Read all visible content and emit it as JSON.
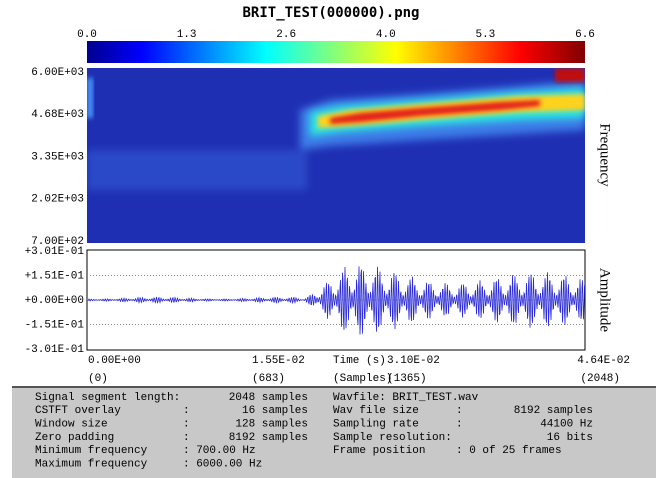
{
  "title": "BRIT_TEST(000000).png",
  "colorbar": {
    "ticks": [
      "0.0",
      "1.3",
      "2.6",
      "4.0",
      "5.3",
      "6.6"
    ]
  },
  "spectrogram": {
    "y_ticks": [
      "6.00E+03",
      "4.68E+03",
      "3.35E+03",
      "2.02E+03",
      "7.00E+02"
    ],
    "y_label": "Frequency"
  },
  "waveform": {
    "y_ticks": [
      "+3.01E-01",
      "+1.51E-01",
      "+0.00E+00",
      "-1.51E-01",
      "-3.01E-01"
    ],
    "y_label": "Amplitude"
  },
  "x_axis": {
    "time_ticks": [
      "0.00E+00",
      "1.55E-02",
      "3.10E-02",
      "4.64E-02"
    ],
    "time_label": "Time (s)",
    "sample_ticks": [
      "(0)",
      "(683)",
      "(1365)",
      "(2048)"
    ],
    "sample_label": "(Samples)"
  },
  "info": {
    "left": [
      {
        "label": "Signal segment length:",
        "value": "2048 samples"
      },
      {
        "label": "CSTFT overlay",
        "sep": ":",
        "value": "16 samples"
      },
      {
        "label": "Window size",
        "sep": ":",
        "value": "128 samples"
      },
      {
        "label": "Zero padding",
        "sep": ":",
        "value": "8192 samples"
      },
      {
        "label": "Minimum frequency",
        "value": ": 700.00 Hz"
      },
      {
        "label": "Maximum frequency",
        "value": ": 6000.00 Hz"
      }
    ],
    "right": [
      {
        "label": "Wavfile: BRIT_TEST.wav"
      },
      {
        "label": "Wav file size",
        "sep": ":",
        "value": "8192 samples"
      },
      {
        "label": "Sampling rate",
        "sep": ":",
        "value": "44100 Hz"
      },
      {
        "label": "Sample resolution:",
        "value": "16 bits"
      },
      {
        "label": "Frame position",
        "value": ": 0 of 25 frames"
      }
    ]
  }
}
